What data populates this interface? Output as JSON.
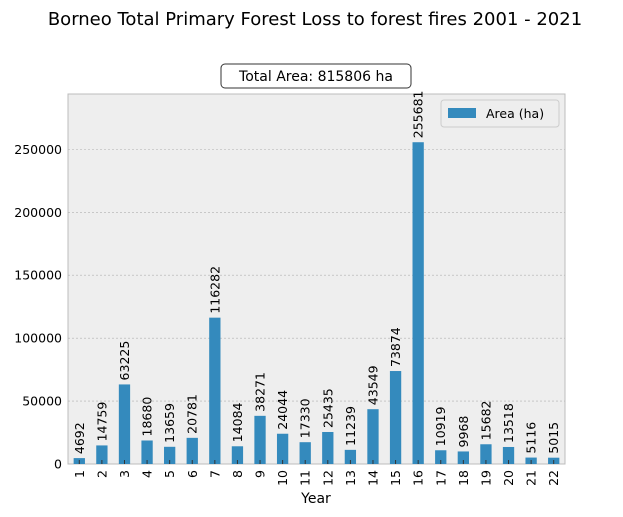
{
  "chart_data": {
    "type": "bar",
    "title": "Borneo Total Primary Forest Loss to forest fires 2001 - 2021",
    "annotation": "Total Area: 815806 ha",
    "xlabel": "Year",
    "ylabel": "",
    "categories": [
      "1",
      "2",
      "3",
      "4",
      "5",
      "6",
      "7",
      "8",
      "9",
      "10",
      "11",
      "12",
      "13",
      "14",
      "15",
      "16",
      "17",
      "18",
      "19",
      "20",
      "21",
      "22"
    ],
    "series": [
      {
        "name": "Area (ha)",
        "color": "#348abd",
        "values": [
          4692,
          14759,
          63225,
          18680,
          13659,
          20781,
          116282,
          14084,
          38271,
          24044,
          17330,
          25435,
          11239,
          43549,
          73874,
          255681,
          10919,
          9968,
          15682,
          13518,
          5116,
          5015
        ]
      }
    ],
    "yticks": [
      0,
      50000,
      100000,
      150000,
      200000,
      250000
    ],
    "ylim": [
      0,
      294000
    ],
    "grid": true,
    "legend_position": "top-right",
    "background_color": "#eeeeee",
    "grid_color": "#b0b0b0"
  }
}
